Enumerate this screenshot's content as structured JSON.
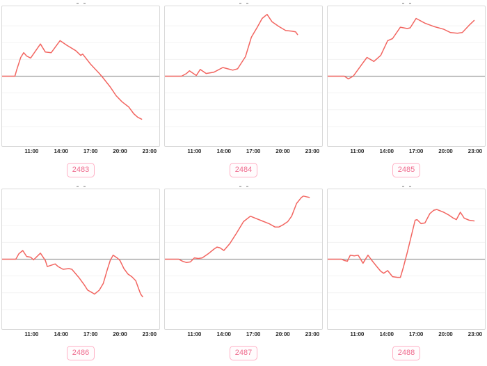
{
  "page": {
    "background_color": "#ffffff",
    "layout": "2x3-grid-of-sparkline-charts"
  },
  "styles": {
    "line_color": "#f26560",
    "zero_line_color": "#9b9b9b",
    "grid_color": "#f3f3f3",
    "box_border_color": "#d9d9d9",
    "badge_border_color": "#ffb0c5",
    "badge_text_color": "#ef6d8f",
    "badge_bg_color": "#fffcfd",
    "tick_text_color": "#262626"
  },
  "chart_data": [
    {
      "type": "line",
      "label": "2483",
      "title": "",
      "xlabel": "",
      "ylabel": "",
      "xlim": [
        8,
        24
      ],
      "ylim": [
        -100,
        100
      ],
      "x_ticks": [
        "11:00",
        "14:00",
        "17:00",
        "20:00",
        "23:00"
      ],
      "tick_hours": [
        11,
        14,
        17,
        20,
        23
      ],
      "grid": "horizontal",
      "zero_baseline": true,
      "legend": "none",
      "points": [
        [
          8,
          0
        ],
        [
          9.3,
          0
        ],
        [
          9.5,
          10
        ],
        [
          9.9,
          28
        ],
        [
          10.2,
          35
        ],
        [
          10.5,
          30
        ],
        [
          10.9,
          27
        ],
        [
          11.9,
          48
        ],
        [
          12.4,
          36
        ],
        [
          13.0,
          35
        ],
        [
          13.9,
          53
        ],
        [
          14.6,
          46
        ],
        [
          15.5,
          38
        ],
        [
          16.0,
          31
        ],
        [
          16.2,
          33
        ],
        [
          17.0,
          18
        ],
        [
          17.9,
          4
        ],
        [
          18.3,
          -3
        ],
        [
          19.0,
          -16
        ],
        [
          19.6,
          -29
        ],
        [
          20.2,
          -38
        ],
        [
          20.9,
          -46
        ],
        [
          21.4,
          -56
        ],
        [
          21.8,
          -61
        ],
        [
          22.2,
          -64
        ]
      ]
    },
    {
      "type": "line",
      "label": "2484",
      "title": "",
      "xlabel": "",
      "ylabel": "",
      "xlim": [
        8,
        24
      ],
      "ylim": [
        -100,
        100
      ],
      "x_ticks": [
        "11:00",
        "14:00",
        "17:00",
        "20:00",
        "23:00"
      ],
      "tick_hours": [
        11,
        14,
        17,
        20,
        23
      ],
      "grid": "horizontal",
      "zero_baseline": true,
      "legend": "none",
      "points": [
        [
          8,
          0
        ],
        [
          9.7,
          0
        ],
        [
          10.2,
          4
        ],
        [
          10.5,
          8
        ],
        [
          11.2,
          1
        ],
        [
          11.6,
          10
        ],
        [
          12.2,
          4
        ],
        [
          13.0,
          6
        ],
        [
          13.9,
          13
        ],
        [
          14.4,
          11
        ],
        [
          14.9,
          9
        ],
        [
          15.4,
          11
        ],
        [
          16.2,
          29
        ],
        [
          16.8,
          58
        ],
        [
          17.4,
          73
        ],
        [
          17.9,
          86
        ],
        [
          18.4,
          92
        ],
        [
          18.9,
          81
        ],
        [
          19.6,
          74
        ],
        [
          20.3,
          68
        ],
        [
          20.9,
          67
        ],
        [
          21.3,
          66
        ],
        [
          21.5,
          62
        ]
      ]
    },
    {
      "type": "line",
      "label": "2485",
      "title": "",
      "xlabel": "",
      "ylabel": "",
      "xlim": [
        8,
        24
      ],
      "ylim": [
        -100,
        100
      ],
      "x_ticks": [
        "11:00",
        "14:00",
        "17:00",
        "20:00",
        "23:00"
      ],
      "tick_hours": [
        11,
        14,
        17,
        20,
        23
      ],
      "grid": "horizontal",
      "zero_baseline": true,
      "legend": "none",
      "points": [
        [
          8,
          0
        ],
        [
          9.7,
          0
        ],
        [
          10.1,
          -4
        ],
        [
          10.6,
          0
        ],
        [
          11.5,
          18
        ],
        [
          12.0,
          28
        ],
        [
          12.7,
          22
        ],
        [
          13.4,
          31
        ],
        [
          14.1,
          53
        ],
        [
          14.6,
          56
        ],
        [
          15.4,
          73
        ],
        [
          16.1,
          71
        ],
        [
          16.4,
          72
        ],
        [
          17.0,
          86
        ],
        [
          17.9,
          79
        ],
        [
          18.8,
          74
        ],
        [
          19.8,
          70
        ],
        [
          20.5,
          65
        ],
        [
          21.2,
          64
        ],
        [
          21.7,
          65
        ],
        [
          22.4,
          76
        ],
        [
          22.9,
          83
        ]
      ]
    },
    {
      "type": "line",
      "label": "2486",
      "title": "",
      "xlabel": "",
      "ylabel": "",
      "xlim": [
        8,
        24
      ],
      "ylim": [
        -100,
        100
      ],
      "x_ticks": [
        "11:00",
        "14:00",
        "17:00",
        "20:00",
        "23:00"
      ],
      "tick_hours": [
        11,
        14,
        17,
        20,
        23
      ],
      "grid": "horizontal",
      "zero_baseline": true,
      "legend": "none",
      "points": [
        [
          8,
          0
        ],
        [
          9.4,
          0
        ],
        [
          9.7,
          8
        ],
        [
          10.1,
          13
        ],
        [
          10.5,
          4
        ],
        [
          10.9,
          3
        ],
        [
          11.2,
          -1
        ],
        [
          11.9,
          9
        ],
        [
          12.4,
          -2
        ],
        [
          12.6,
          -11
        ],
        [
          13.0,
          -9
        ],
        [
          13.4,
          -7
        ],
        [
          13.7,
          -11
        ],
        [
          14.2,
          -15
        ],
        [
          14.8,
          -14
        ],
        [
          15.1,
          -15
        ],
        [
          15.8,
          -27
        ],
        [
          16.4,
          -39
        ],
        [
          16.7,
          -46
        ],
        [
          17.2,
          -50
        ],
        [
          17.4,
          -52
        ],
        [
          17.9,
          -46
        ],
        [
          18.3,
          -36
        ],
        [
          18.7,
          -16
        ],
        [
          19.0,
          -2
        ],
        [
          19.3,
          6
        ],
        [
          19.7,
          2
        ],
        [
          20.0,
          -2
        ],
        [
          20.4,
          -14
        ],
        [
          20.8,
          -22
        ],
        [
          21.2,
          -26
        ],
        [
          21.6,
          -32
        ],
        [
          21.9,
          -44
        ],
        [
          22.1,
          -52
        ],
        [
          22.3,
          -56
        ]
      ]
    },
    {
      "type": "line",
      "label": "2487",
      "title": "",
      "xlabel": "",
      "ylabel": "",
      "xlim": [
        8,
        24
      ],
      "ylim": [
        -100,
        100
      ],
      "x_ticks": [
        "11:00",
        "14:00",
        "17:00",
        "20:00",
        "23:00"
      ],
      "tick_hours": [
        11,
        14,
        17,
        20,
        23
      ],
      "grid": "horizontal",
      "zero_baseline": true,
      "legend": "none",
      "points": [
        [
          8,
          0
        ],
        [
          9.4,
          0
        ],
        [
          9.8,
          -3
        ],
        [
          10.2,
          -5
        ],
        [
          10.6,
          -4
        ],
        [
          11.0,
          2
        ],
        [
          11.4,
          1
        ],
        [
          11.8,
          2
        ],
        [
          12.4,
          8
        ],
        [
          13.0,
          15
        ],
        [
          13.3,
          18
        ],
        [
          13.6,
          17
        ],
        [
          14.0,
          13
        ],
        [
          14.6,
          23
        ],
        [
          15.3,
          39
        ],
        [
          16.0,
          56
        ],
        [
          16.7,
          64
        ],
        [
          17.2,
          61
        ],
        [
          17.9,
          57
        ],
        [
          18.6,
          53
        ],
        [
          19.2,
          48
        ],
        [
          19.6,
          48
        ],
        [
          20.0,
          51
        ],
        [
          20.5,
          56
        ],
        [
          20.9,
          64
        ],
        [
          21.4,
          83
        ],
        [
          21.9,
          92
        ],
        [
          22.1,
          94
        ],
        [
          22.4,
          93
        ],
        [
          22.7,
          92
        ]
      ]
    },
    {
      "type": "line",
      "label": "2488",
      "title": "",
      "xlabel": "",
      "ylabel": "",
      "xlim": [
        8,
        24
      ],
      "ylim": [
        -100,
        100
      ],
      "x_ticks": [
        "11:00",
        "14:00",
        "17:00",
        "20:00",
        "23:00"
      ],
      "tick_hours": [
        11,
        14,
        17,
        20,
        23
      ],
      "grid": "horizontal",
      "zero_baseline": true,
      "legend": "none",
      "points": [
        [
          8,
          0
        ],
        [
          9.4,
          0
        ],
        [
          9.7,
          -2
        ],
        [
          10.0,
          -3
        ],
        [
          10.3,
          6
        ],
        [
          10.7,
          5
        ],
        [
          11.1,
          6
        ],
        [
          11.6,
          -6
        ],
        [
          12.1,
          6
        ],
        [
          12.5,
          -2
        ],
        [
          13.0,
          -11
        ],
        [
          13.4,
          -18
        ],
        [
          13.7,
          -21
        ],
        [
          14.1,
          -17
        ],
        [
          14.6,
          -26
        ],
        [
          15.1,
          -27
        ],
        [
          15.4,
          -27
        ],
        [
          15.7,
          -12
        ],
        [
          16.1,
          10
        ],
        [
          16.3,
          22
        ],
        [
          16.9,
          58
        ],
        [
          17.1,
          59
        ],
        [
          17.5,
          53
        ],
        [
          17.9,
          54
        ],
        [
          18.4,
          68
        ],
        [
          18.8,
          73
        ],
        [
          19.1,
          74
        ],
        [
          19.8,
          70
        ],
        [
          20.3,
          66
        ],
        [
          20.8,
          61
        ],
        [
          21.1,
          59
        ],
        [
          21.5,
          70
        ],
        [
          21.9,
          61
        ],
        [
          22.4,
          58
        ],
        [
          22.9,
          57
        ]
      ]
    }
  ]
}
